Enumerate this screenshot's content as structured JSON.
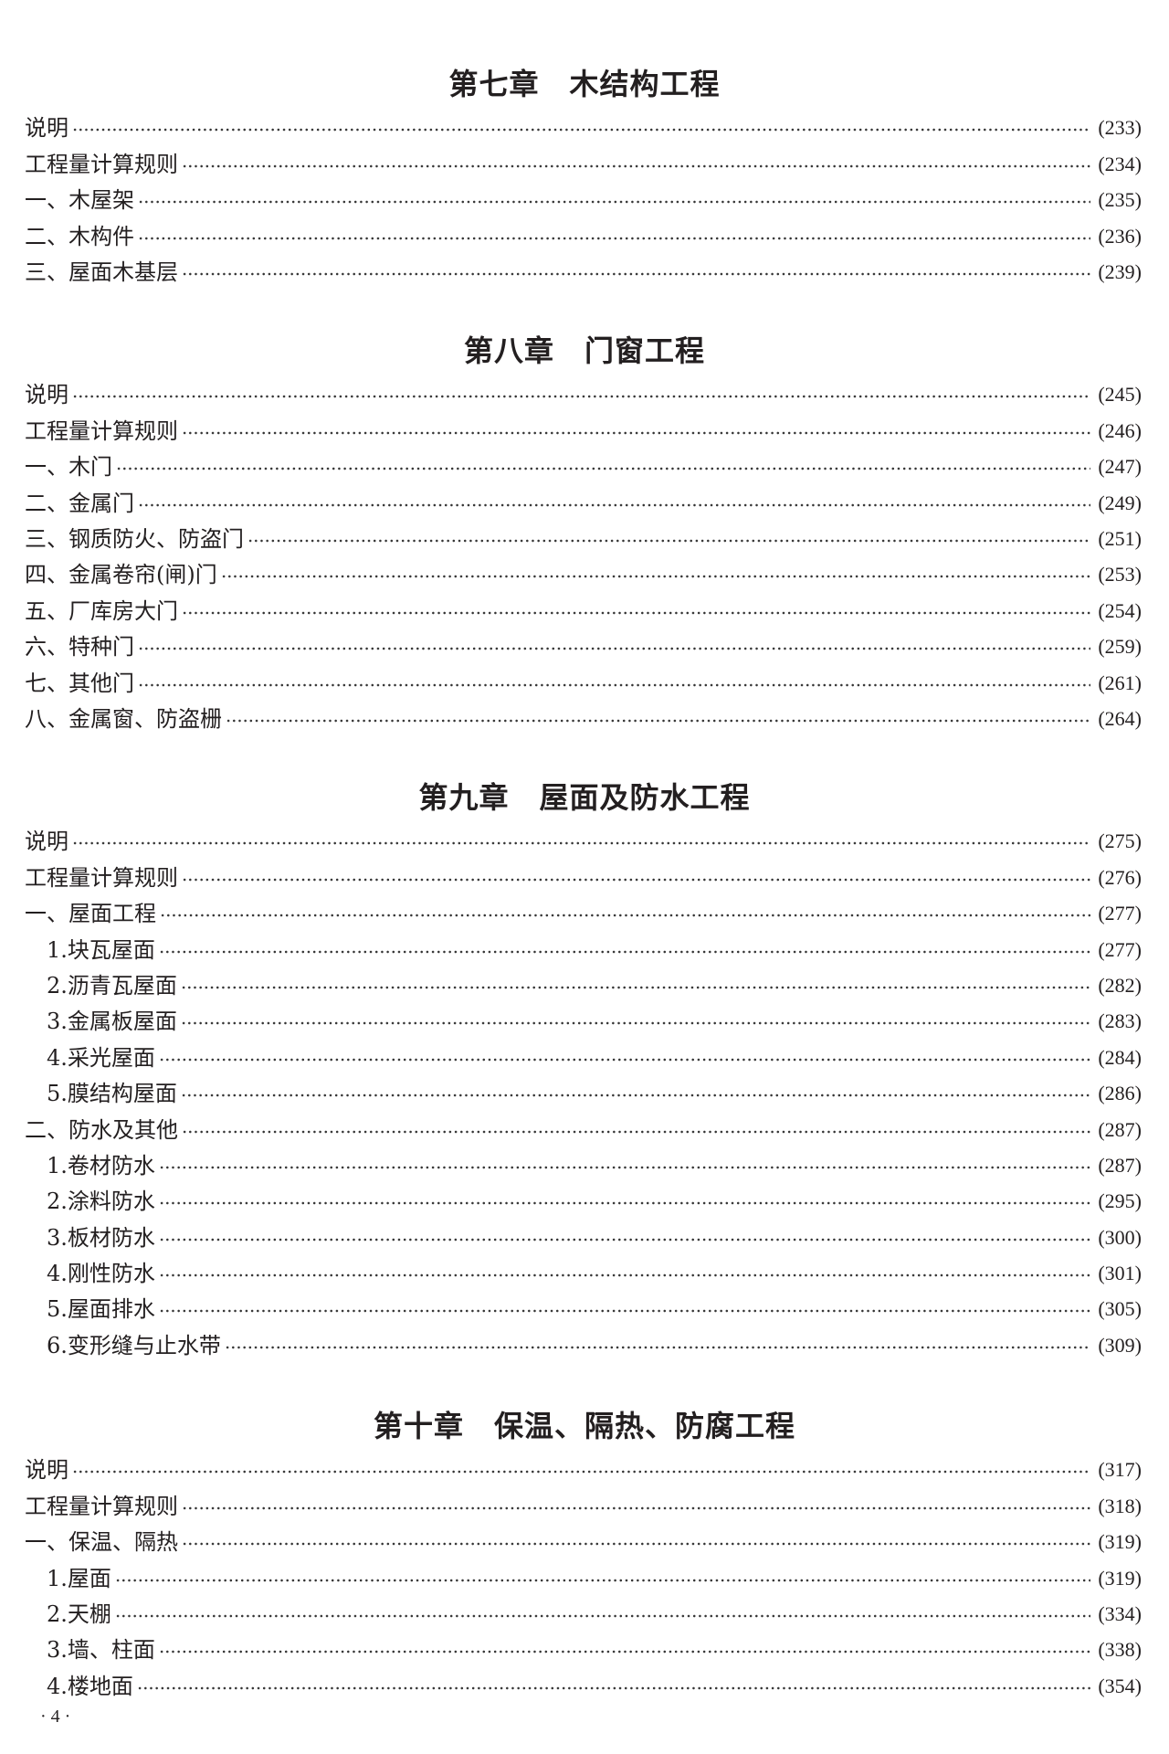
{
  "chapters": [
    {
      "title": "第七章　木结构工程",
      "items": [
        {
          "label": "说明",
          "page": "(233)",
          "level": 0
        },
        {
          "label": "工程量计算规则",
          "page": "(234)",
          "level": 0
        },
        {
          "label": "一、木屋架",
          "page": "(235)",
          "level": 0
        },
        {
          "label": "二、木构件",
          "page": "(236)",
          "level": 0
        },
        {
          "label": "三、屋面木基层",
          "page": "(239)",
          "level": 0
        }
      ]
    },
    {
      "title": "第八章　门窗工程",
      "items": [
        {
          "label": "说明",
          "page": "(245)",
          "level": 0
        },
        {
          "label": "工程量计算规则",
          "page": "(246)",
          "level": 0
        },
        {
          "label": "一、木门",
          "page": "(247)",
          "level": 0
        },
        {
          "label": "二、金属门",
          "page": "(249)",
          "level": 0
        },
        {
          "label": "三、钢质防火、防盗门",
          "page": "(251)",
          "level": 0
        },
        {
          "label": "四、金属卷帘(闸)门",
          "page": "(253)",
          "level": 0
        },
        {
          "label": "五、厂库房大门",
          "page": "(254)",
          "level": 0
        },
        {
          "label": "六、特种门",
          "page": "(259)",
          "level": 0
        },
        {
          "label": "七、其他门",
          "page": "(261)",
          "level": 0
        },
        {
          "label": "八、金属窗、防盗栅",
          "page": "(264)",
          "level": 0
        }
      ]
    },
    {
      "title": "第九章　屋面及防水工程",
      "items": [
        {
          "label": "说明",
          "page": "(275)",
          "level": 0
        },
        {
          "label": "工程量计算规则",
          "page": "(276)",
          "level": 0
        },
        {
          "label": "一、屋面工程",
          "page": "(277)",
          "level": 0
        },
        {
          "label": "1.块瓦屋面",
          "page": "(277)",
          "level": 1
        },
        {
          "label": "2.沥青瓦屋面",
          "page": "(282)",
          "level": 1
        },
        {
          "label": "3.金属板屋面",
          "page": "(283)",
          "level": 1
        },
        {
          "label": "4.采光屋面",
          "page": "(284)",
          "level": 1
        },
        {
          "label": "5.膜结构屋面",
          "page": "(286)",
          "level": 1
        },
        {
          "label": "二、防水及其他",
          "page": "(287)",
          "level": 0
        },
        {
          "label": "1.卷材防水",
          "page": "(287)",
          "level": 1
        },
        {
          "label": "2.涂料防水",
          "page": "(295)",
          "level": 1
        },
        {
          "label": "3.板材防水",
          "page": "(300)",
          "level": 1
        },
        {
          "label": "4.刚性防水",
          "page": "(301)",
          "level": 1
        },
        {
          "label": "5.屋面排水",
          "page": "(305)",
          "level": 1
        },
        {
          "label": "6.变形缝与止水带",
          "page": "(309)",
          "level": 1
        }
      ]
    },
    {
      "title": "第十章　保温、隔热、防腐工程",
      "items": [
        {
          "label": "说明",
          "page": "(317)",
          "level": 0
        },
        {
          "label": "工程量计算规则",
          "page": "(318)",
          "level": 0
        },
        {
          "label": "一、保温、隔热",
          "page": "(319)",
          "level": 0
        },
        {
          "label": "1.屋面",
          "page": "(319)",
          "level": 1
        },
        {
          "label": "2.天棚",
          "page": "(334)",
          "level": 1
        },
        {
          "label": "3.墙、柱面",
          "page": "(338)",
          "level": 1
        },
        {
          "label": "4.楼地面",
          "page": "(354)",
          "level": 1
        }
      ]
    }
  ],
  "footer": {
    "page_number": "· 4 ·"
  }
}
